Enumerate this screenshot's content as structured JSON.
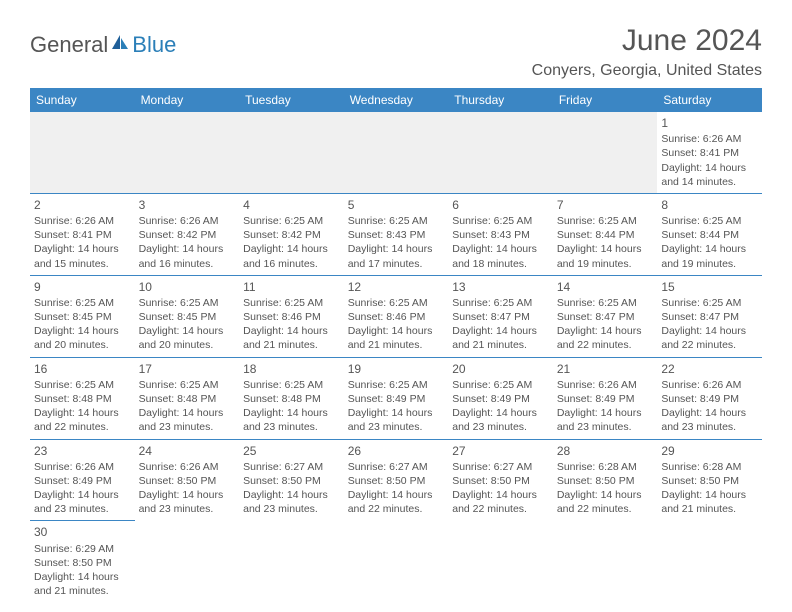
{
  "logo": {
    "partA": "General",
    "partB": "Blue",
    "colorA": "#555555",
    "colorB": "#2b7fb8"
  },
  "title": "June 2024",
  "location": "Conyers, Georgia, United States",
  "colors": {
    "header_bg": "#3b86c4",
    "header_text": "#ffffff",
    "body_text": "#555555",
    "row_alt_bg": "#f0f0f0",
    "divider": "#3b86c4"
  },
  "weekdays": [
    "Sunday",
    "Monday",
    "Tuesday",
    "Wednesday",
    "Thursday",
    "Friday",
    "Saturday"
  ],
  "weeks": [
    [
      null,
      null,
      null,
      null,
      null,
      null,
      {
        "d": "1",
        "sr": "Sunrise: 6:26 AM",
        "ss": "Sunset: 8:41 PM",
        "dl1": "Daylight: 14 hours",
        "dl2": "and 14 minutes."
      }
    ],
    [
      {
        "d": "2",
        "sr": "Sunrise: 6:26 AM",
        "ss": "Sunset: 8:41 PM",
        "dl1": "Daylight: 14 hours",
        "dl2": "and 15 minutes."
      },
      {
        "d": "3",
        "sr": "Sunrise: 6:26 AM",
        "ss": "Sunset: 8:42 PM",
        "dl1": "Daylight: 14 hours",
        "dl2": "and 16 minutes."
      },
      {
        "d": "4",
        "sr": "Sunrise: 6:25 AM",
        "ss": "Sunset: 8:42 PM",
        "dl1": "Daylight: 14 hours",
        "dl2": "and 16 minutes."
      },
      {
        "d": "5",
        "sr": "Sunrise: 6:25 AM",
        "ss": "Sunset: 8:43 PM",
        "dl1": "Daylight: 14 hours",
        "dl2": "and 17 minutes."
      },
      {
        "d": "6",
        "sr": "Sunrise: 6:25 AM",
        "ss": "Sunset: 8:43 PM",
        "dl1": "Daylight: 14 hours",
        "dl2": "and 18 minutes."
      },
      {
        "d": "7",
        "sr": "Sunrise: 6:25 AM",
        "ss": "Sunset: 8:44 PM",
        "dl1": "Daylight: 14 hours",
        "dl2": "and 19 minutes."
      },
      {
        "d": "8",
        "sr": "Sunrise: 6:25 AM",
        "ss": "Sunset: 8:44 PM",
        "dl1": "Daylight: 14 hours",
        "dl2": "and 19 minutes."
      }
    ],
    [
      {
        "d": "9",
        "sr": "Sunrise: 6:25 AM",
        "ss": "Sunset: 8:45 PM",
        "dl1": "Daylight: 14 hours",
        "dl2": "and 20 minutes."
      },
      {
        "d": "10",
        "sr": "Sunrise: 6:25 AM",
        "ss": "Sunset: 8:45 PM",
        "dl1": "Daylight: 14 hours",
        "dl2": "and 20 minutes."
      },
      {
        "d": "11",
        "sr": "Sunrise: 6:25 AM",
        "ss": "Sunset: 8:46 PM",
        "dl1": "Daylight: 14 hours",
        "dl2": "and 21 minutes."
      },
      {
        "d": "12",
        "sr": "Sunrise: 6:25 AM",
        "ss": "Sunset: 8:46 PM",
        "dl1": "Daylight: 14 hours",
        "dl2": "and 21 minutes."
      },
      {
        "d": "13",
        "sr": "Sunrise: 6:25 AM",
        "ss": "Sunset: 8:47 PM",
        "dl1": "Daylight: 14 hours",
        "dl2": "and 21 minutes."
      },
      {
        "d": "14",
        "sr": "Sunrise: 6:25 AM",
        "ss": "Sunset: 8:47 PM",
        "dl1": "Daylight: 14 hours",
        "dl2": "and 22 minutes."
      },
      {
        "d": "15",
        "sr": "Sunrise: 6:25 AM",
        "ss": "Sunset: 8:47 PM",
        "dl1": "Daylight: 14 hours",
        "dl2": "and 22 minutes."
      }
    ],
    [
      {
        "d": "16",
        "sr": "Sunrise: 6:25 AM",
        "ss": "Sunset: 8:48 PM",
        "dl1": "Daylight: 14 hours",
        "dl2": "and 22 minutes."
      },
      {
        "d": "17",
        "sr": "Sunrise: 6:25 AM",
        "ss": "Sunset: 8:48 PM",
        "dl1": "Daylight: 14 hours",
        "dl2": "and 23 minutes."
      },
      {
        "d": "18",
        "sr": "Sunrise: 6:25 AM",
        "ss": "Sunset: 8:48 PM",
        "dl1": "Daylight: 14 hours",
        "dl2": "and 23 minutes."
      },
      {
        "d": "19",
        "sr": "Sunrise: 6:25 AM",
        "ss": "Sunset: 8:49 PM",
        "dl1": "Daylight: 14 hours",
        "dl2": "and 23 minutes."
      },
      {
        "d": "20",
        "sr": "Sunrise: 6:25 AM",
        "ss": "Sunset: 8:49 PM",
        "dl1": "Daylight: 14 hours",
        "dl2": "and 23 minutes."
      },
      {
        "d": "21",
        "sr": "Sunrise: 6:26 AM",
        "ss": "Sunset: 8:49 PM",
        "dl1": "Daylight: 14 hours",
        "dl2": "and 23 minutes."
      },
      {
        "d": "22",
        "sr": "Sunrise: 6:26 AM",
        "ss": "Sunset: 8:49 PM",
        "dl1": "Daylight: 14 hours",
        "dl2": "and 23 minutes."
      }
    ],
    [
      {
        "d": "23",
        "sr": "Sunrise: 6:26 AM",
        "ss": "Sunset: 8:49 PM",
        "dl1": "Daylight: 14 hours",
        "dl2": "and 23 minutes."
      },
      {
        "d": "24",
        "sr": "Sunrise: 6:26 AM",
        "ss": "Sunset: 8:50 PM",
        "dl1": "Daylight: 14 hours",
        "dl2": "and 23 minutes."
      },
      {
        "d": "25",
        "sr": "Sunrise: 6:27 AM",
        "ss": "Sunset: 8:50 PM",
        "dl1": "Daylight: 14 hours",
        "dl2": "and 23 minutes."
      },
      {
        "d": "26",
        "sr": "Sunrise: 6:27 AM",
        "ss": "Sunset: 8:50 PM",
        "dl1": "Daylight: 14 hours",
        "dl2": "and 22 minutes."
      },
      {
        "d": "27",
        "sr": "Sunrise: 6:27 AM",
        "ss": "Sunset: 8:50 PM",
        "dl1": "Daylight: 14 hours",
        "dl2": "and 22 minutes."
      },
      {
        "d": "28",
        "sr": "Sunrise: 6:28 AM",
        "ss": "Sunset: 8:50 PM",
        "dl1": "Daylight: 14 hours",
        "dl2": "and 22 minutes."
      },
      {
        "d": "29",
        "sr": "Sunrise: 6:28 AM",
        "ss": "Sunset: 8:50 PM",
        "dl1": "Daylight: 14 hours",
        "dl2": "and 21 minutes."
      }
    ],
    [
      {
        "d": "30",
        "sr": "Sunrise: 6:29 AM",
        "ss": "Sunset: 8:50 PM",
        "dl1": "Daylight: 14 hours",
        "dl2": "and 21 minutes."
      },
      null,
      null,
      null,
      null,
      null,
      null
    ]
  ]
}
